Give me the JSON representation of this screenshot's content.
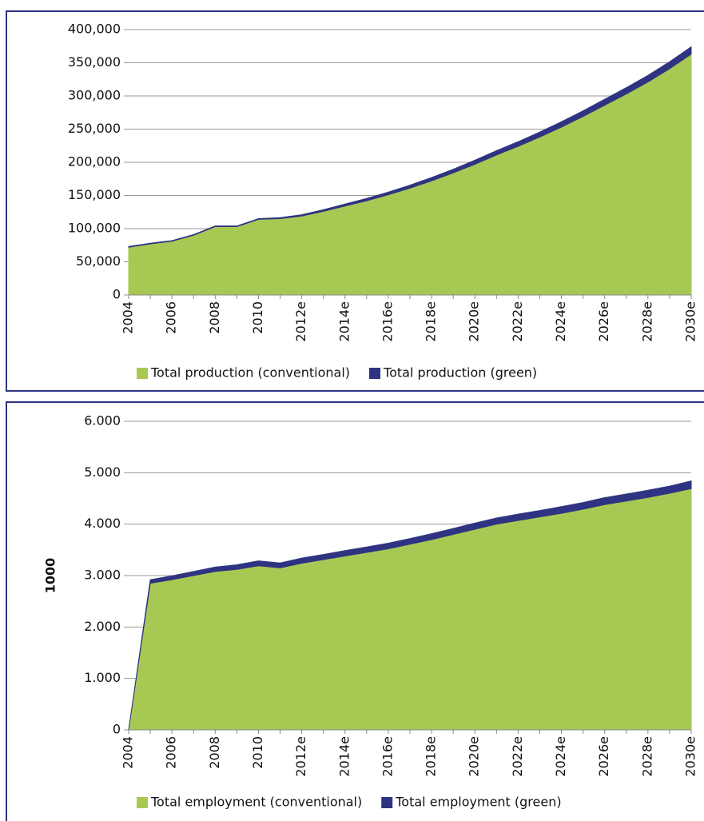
{
  "chart_data": [
    {
      "type": "stacked-area",
      "categories": [
        "2004",
        null,
        "2006",
        null,
        "2008",
        null,
        "2010",
        null,
        "2012e",
        null,
        "2014e",
        null,
        "2016e",
        null,
        "2018e",
        null,
        "2020e",
        null,
        "2022e",
        null,
        "2024e",
        null,
        "2026e",
        null,
        "2028e",
        null,
        "2030e"
      ],
      "series": [
        {
          "name": "Total production (conventional)",
          "color": "#a8c854",
          "values": [
            72000,
            77000,
            81000,
            90000,
            103000,
            103000,
            114000,
            115000,
            119000,
            126000,
            134000,
            142000,
            151000,
            161000,
            172000,
            184000,
            197000,
            211000,
            224000,
            238000,
            253000,
            269000,
            286000,
            303000,
            321000,
            341000,
            363000
          ]
        },
        {
          "name": "Total production (green)",
          "color": "#2e3481",
          "values": [
            1000,
            1000,
            1000,
            1000,
            1000,
            1000,
            1000,
            1500,
            2000,
            2500,
            3000,
            3500,
            4000,
            4500,
            5000,
            5500,
            6000,
            6500,
            7000,
            7500,
            8000,
            8500,
            9000,
            9500,
            10000,
            10500,
            11000
          ]
        }
      ],
      "ylim": [
        0,
        400000
      ],
      "yticks": [
        0,
        {
          "value": 50000,
          "label": "50,000"
        },
        {
          "value": 100000,
          "label": "100,000"
        },
        {
          "value": 150000,
          "label": "150,000"
        },
        {
          "value": 200000,
          "label": "200,000"
        },
        {
          "value": 250000,
          "label": "250,000"
        },
        {
          "value": 300000,
          "label": "300,000"
        },
        {
          "value": 350000,
          "label": "350,000"
        },
        {
          "value": 400000,
          "label": "400,000"
        }
      ],
      "grid": true
    },
    {
      "type": "stacked-area",
      "y_label": "1000",
      "categories": [
        "2004",
        null,
        "2006",
        null,
        "2008",
        null,
        "2010",
        null,
        "2012e",
        null,
        "2014e",
        null,
        "2016e",
        null,
        "2018e",
        null,
        "2020e",
        null,
        "2022e",
        null,
        "2024e",
        null,
        "2026e",
        null,
        "2028e",
        null,
        "2030e"
      ],
      "series": [
        {
          "name": "Total employment (conventional)",
          "color": "#a8c854",
          "values": [
            0,
            2850,
            2920,
            3000,
            3080,
            3120,
            3190,
            3150,
            3240,
            3310,
            3380,
            3450,
            3520,
            3610,
            3700,
            3800,
            3900,
            4000,
            4070,
            4140,
            4210,
            4290,
            4380,
            4450,
            4520,
            4600,
            4690
          ]
        },
        {
          "name": "Total employment (green)",
          "color": "#2e3481",
          "values": [
            0,
            70,
            75,
            80,
            85,
            90,
            95,
            95,
            100,
            100,
            105,
            105,
            110,
            110,
            115,
            115,
            120,
            120,
            125,
            125,
            130,
            130,
            135,
            135,
            140,
            140,
            150
          ]
        }
      ],
      "ylim": [
        0,
        6000
      ],
      "yticks": [
        0,
        {
          "value": 1000,
          "label": "1.000"
        },
        {
          "value": 2000,
          "label": "2.000"
        },
        {
          "value": 3000,
          "label": "3.000"
        },
        {
          "value": 4000,
          "label": "4.000"
        },
        {
          "value": 5000,
          "label": "5.000"
        },
        {
          "value": 6000,
          "label": "6.000"
        }
      ],
      "grid": true
    }
  ]
}
